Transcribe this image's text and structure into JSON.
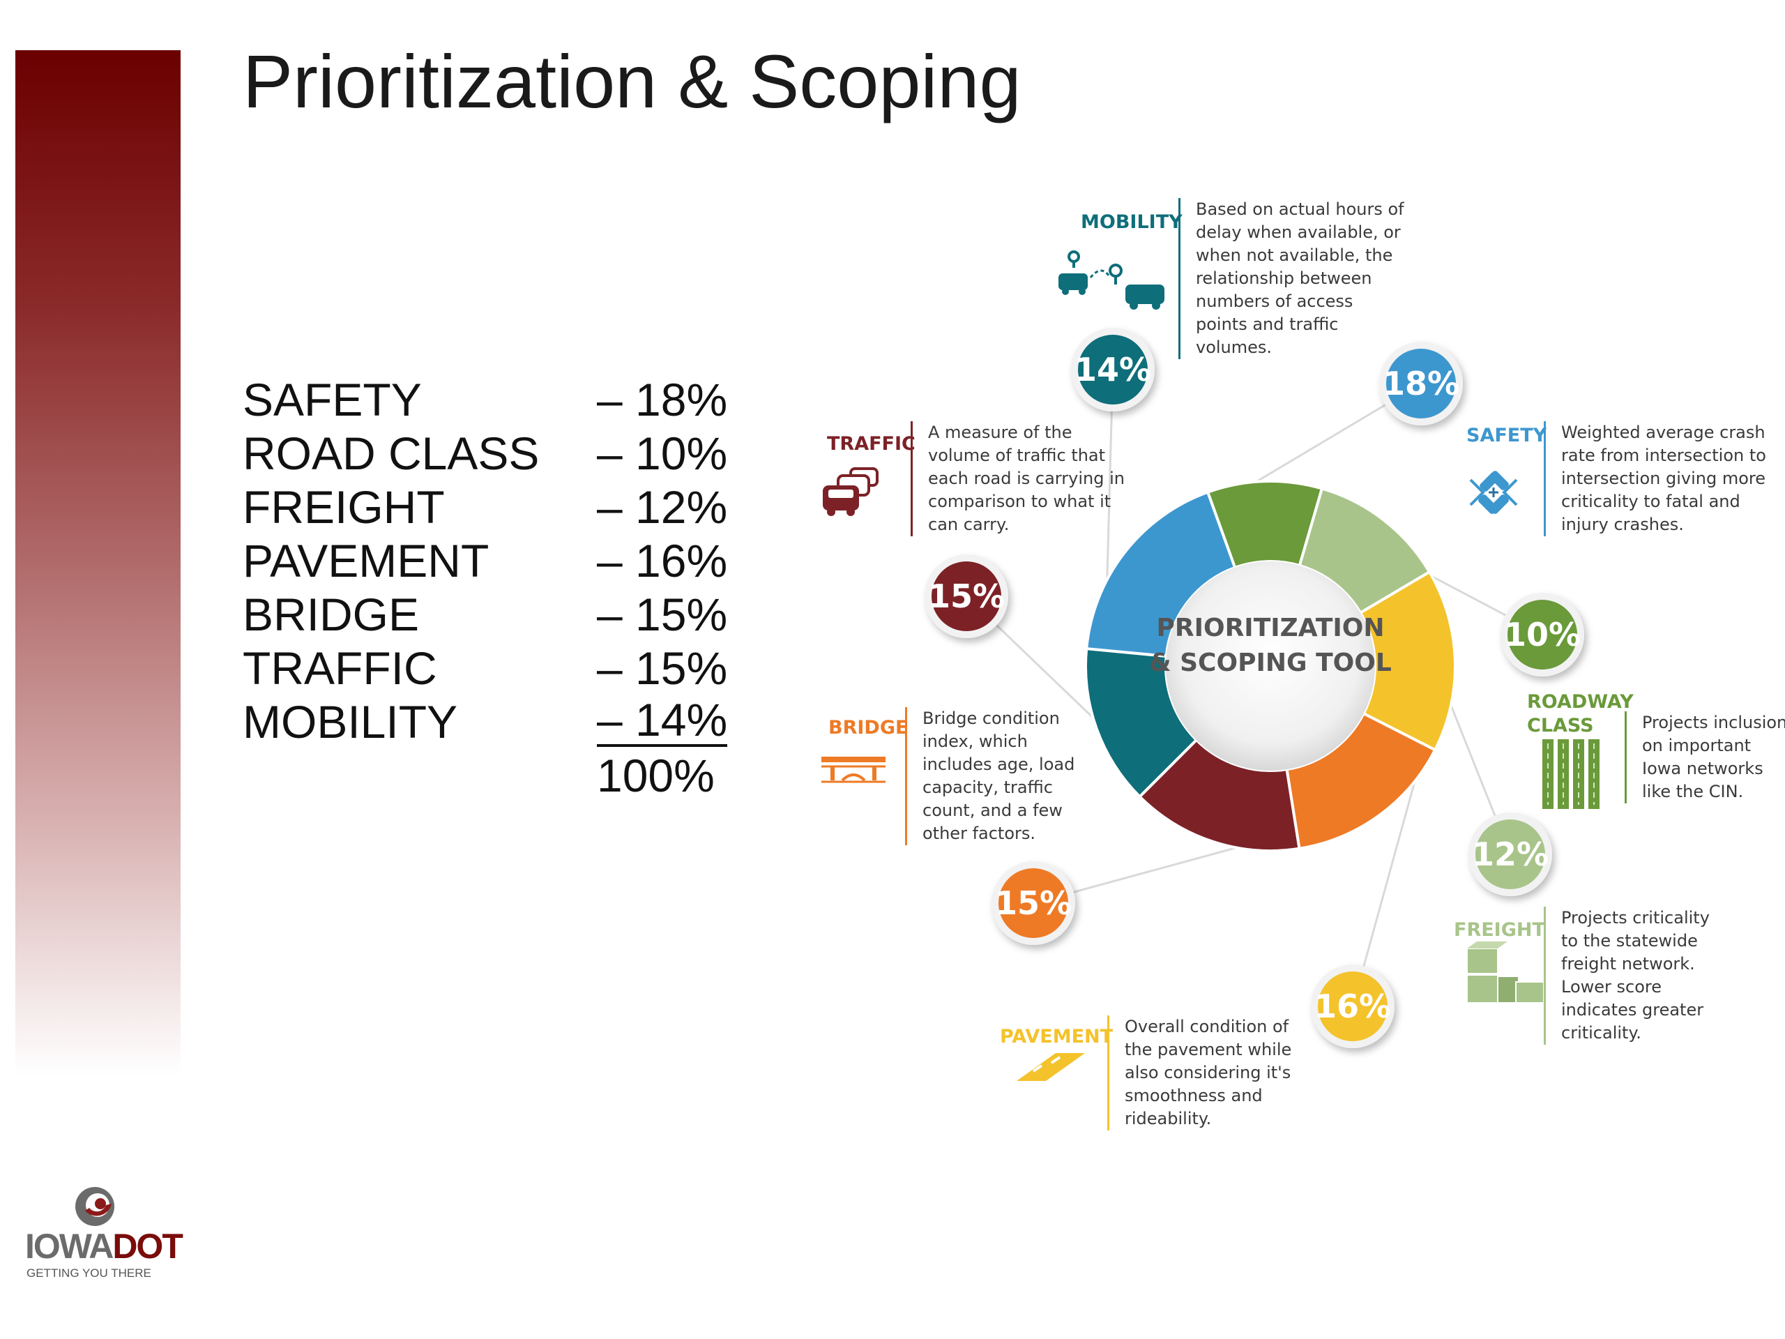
{
  "title": "Prioritization & Scoping",
  "weights": [
    {
      "name": "SAFETY",
      "value": "– 18%"
    },
    {
      "name": "ROAD CLASS",
      "value": "– 10%"
    },
    {
      "name": "FREIGHT",
      "value": "– 12%"
    },
    {
      "name": "PAVEMENT",
      "value": "– 16%"
    },
    {
      "name": "BRIDGE",
      "value": "– 15%"
    },
    {
      "name": "TRAFFIC",
      "value": "– 15%"
    },
    {
      "name": "MOBILITY",
      "value": "– 14%"
    }
  ],
  "total": "100%",
  "logo": {
    "brand_a": "IOWA",
    "brand_b": "DOT",
    "tagline": "GETTING YOU THERE"
  },
  "colors": {
    "brand_dark_red": "#6b0000",
    "mobility": "#0e6e7a",
    "safety": "#3d97cf",
    "road_class": "#6a9a3a",
    "freight": "#a8c48a",
    "pavement": "#f4c22b",
    "bridge": "#ee7a25",
    "traffic": "#7c2227"
  },
  "chart_data": {
    "type": "pie",
    "donut": true,
    "title": "PRIORITIZATION & SCOPING TOOL",
    "center_lines": [
      "PRIORITIZATION",
      "& SCOPING TOOL"
    ],
    "segments": [
      {
        "key": "mobility",
        "label": "MOBILITY",
        "value": 14,
        "pct_label": "14%",
        "color": "#0e6e7a",
        "description": "Based on actual hours of delay when available, or when not available, the relationship between numbers of access points and traffic volumes.",
        "icon": "route-cars-icon"
      },
      {
        "key": "safety",
        "label": "SAFETY",
        "value": 18,
        "pct_label": "18%",
        "color": "#3d97cf",
        "description": "Weighted average crash rate from intersection to intersection giving more criticality to fatal and injury crashes.",
        "icon": "crash-icon"
      },
      {
        "key": "road_class",
        "label": "ROADWAY CLASS",
        "value": 10,
        "pct_label": "10%",
        "color": "#6a9a3a",
        "description": "Projects inclusion on important Iowa networks like the CIN.",
        "icon": "road-lanes-icon"
      },
      {
        "key": "freight",
        "label": "FREIGHT",
        "value": 12,
        "pct_label": "12%",
        "color": "#a8c48a",
        "description": "Projects criticality to the statewide freight network. Lower score indicates greater criticality.",
        "icon": "boxes-icon"
      },
      {
        "key": "pavement",
        "label": "PAVEMENT",
        "value": 16,
        "pct_label": "16%",
        "color": "#f4c22b",
        "description": "Overall condition of the pavement while also considering it's smoothness and rideability.",
        "icon": "pavement-strip-icon"
      },
      {
        "key": "bridge",
        "label": "BRIDGE",
        "value": 15,
        "pct_label": "15%",
        "color": "#ee7a25",
        "description": "Bridge condition index, which includes age, load capacity, traffic count, and a few other factors.",
        "icon": "bridge-icon"
      },
      {
        "key": "traffic",
        "label": "TRAFFIC",
        "value": 15,
        "pct_label": "15%",
        "color": "#7c2227",
        "description": "A measure of the volume of traffic that each road is carrying in comparison to what it can carry.",
        "icon": "traffic-cars-icon"
      }
    ]
  }
}
